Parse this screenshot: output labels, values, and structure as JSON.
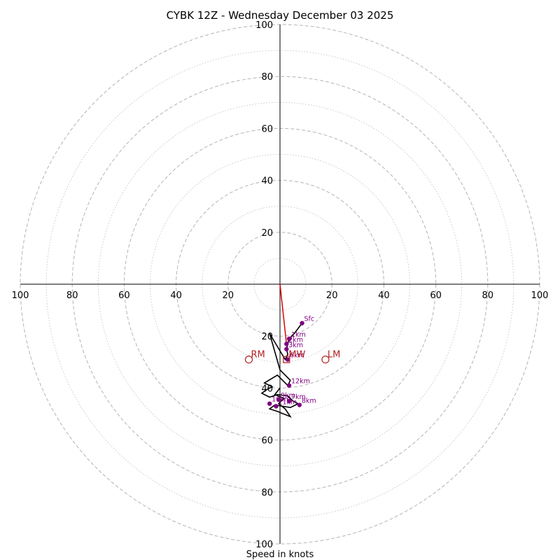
{
  "chart_data": {
    "type": "hodograph",
    "title": "CYBK 12Z - Wednesday December 03 2025",
    "xlabel": "Speed in knots",
    "range": 100,
    "rings_major": [
      20,
      40,
      60,
      80,
      100
    ],
    "rings_minor": [
      10,
      30,
      50,
      70,
      90
    ],
    "ticks": {
      "x_left": [
        "100",
        "80",
        "60",
        "40",
        "20"
      ],
      "x_right": [
        "20",
        "40",
        "60",
        "80",
        "100"
      ],
      "y_top": [
        "100",
        "80",
        "60",
        "40",
        "20"
      ],
      "y_bottom": [
        "20",
        "40",
        "60",
        "80",
        "100"
      ]
    },
    "wind_trace": [
      [
        8.5,
        -15
      ],
      [
        5.5,
        -19
      ],
      [
        3.5,
        -21
      ],
      [
        3,
        -23
      ],
      [
        2.5,
        -25
      ],
      [
        3,
        -27
      ],
      [
        2,
        -29
      ],
      [
        -4,
        -19
      ],
      [
        0,
        -33
      ],
      [
        4,
        -37
      ],
      [
        3,
        -39
      ],
      [
        -1,
        -35
      ],
      [
        -6,
        -38
      ],
      [
        -3,
        -39.5
      ],
      [
        -5,
        -40.5
      ],
      [
        -7,
        -42
      ],
      [
        -4,
        -43.5
      ],
      [
        -1,
        -42.5
      ],
      [
        3,
        -43
      ],
      [
        5,
        -45
      ],
      [
        7,
        -46
      ],
      [
        4,
        -47.5
      ],
      [
        -2,
        -46.5
      ],
      [
        -4,
        -48
      ],
      [
        -1,
        -49
      ],
      [
        4,
        -51
      ],
      [
        2,
        -48
      ],
      [
        -0.5,
        -46
      ],
      [
        1.5,
        -44
      ],
      [
        -2,
        -42.5
      ],
      [
        0,
        -40
      ]
    ],
    "storm_motion_line": [
      [
        0,
        0
      ],
      [
        2.5,
        -23
      ]
    ],
    "height_markers": [
      {
        "label": "Sfc",
        "u": 8.5,
        "v": -15
      },
      {
        "label": "1km",
        "u": 3.5,
        "v": -21
      },
      {
        "label": "2km",
        "u": 2.5,
        "v": -23
      },
      {
        "label": "3km",
        "u": 2.5,
        "v": -25
      },
      {
        "label": "6km",
        "u": 3,
        "v": -29
      },
      {
        "label": "12km",
        "u": 3.5,
        "v": -39
      },
      {
        "label": "9km",
        "u": -0.5,
        "v": -44.5
      },
      {
        "label": "10km",
        "u": -4,
        "v": -46
      },
      {
        "label": "11km",
        "u": -1.5,
        "v": -47
      },
      {
        "label": "7km",
        "u": 3.5,
        "v": -45
      },
      {
        "label": "8km",
        "u": 7.5,
        "v": -46.5
      }
    ],
    "storm_markers": [
      {
        "label": "RM",
        "u": -12,
        "v": -29
      },
      {
        "label": "LM",
        "u": 17.5,
        "v": -29
      },
      {
        "label": "MW",
        "u": 2.5,
        "v": -29
      }
    ]
  }
}
